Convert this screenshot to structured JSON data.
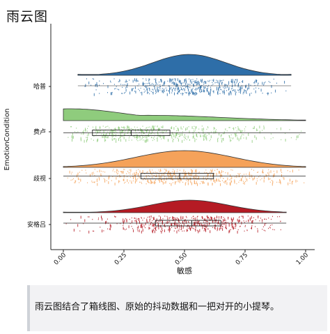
{
  "page": {
    "title": "雨云图"
  },
  "caption": "雨云图结合了箱线图、原始的抖动数据和一把对开的小提琴。",
  "chart_data": {
    "type": "raincloud",
    "xlabel": "敏感",
    "ylabel": "EmotionCondition",
    "xlim": [
      0,
      1
    ],
    "xticks": [
      "0.00",
      "0.25",
      "0.50",
      "0.75",
      "1.00"
    ],
    "xtick_values": [
      0,
      0.25,
      0.5,
      0.75,
      1.0
    ],
    "series": [
      {
        "name": "哈普",
        "color": "#2e6ea8",
        "range": [
          0.06,
          0.94
        ],
        "peak": 0.52,
        "spread": 0.15,
        "box": null
      },
      {
        "name": "费卢",
        "color": "#8fcc7d",
        "range": [
          0.0,
          1.0
        ],
        "peak": 0.03,
        "spread": 0.22,
        "box": {
          "q1": 0.12,
          "median": 0.28,
          "q3": 0.44
        }
      },
      {
        "name": "歧视",
        "color": "#f5a25a",
        "range": [
          0.0,
          1.0
        ],
        "peak": 0.5,
        "spread": 0.2,
        "box": {
          "q1": 0.32,
          "median": 0.48,
          "q3": 0.62
        }
      },
      {
        "name": "安格吕",
        "color": "#b51b24",
        "range": [
          0.0,
          0.92
        ],
        "peak": 0.52,
        "spread": 0.16,
        "box": {
          "q1": 0.38,
          "median": 0.53,
          "q3": 0.65
        }
      }
    ]
  }
}
